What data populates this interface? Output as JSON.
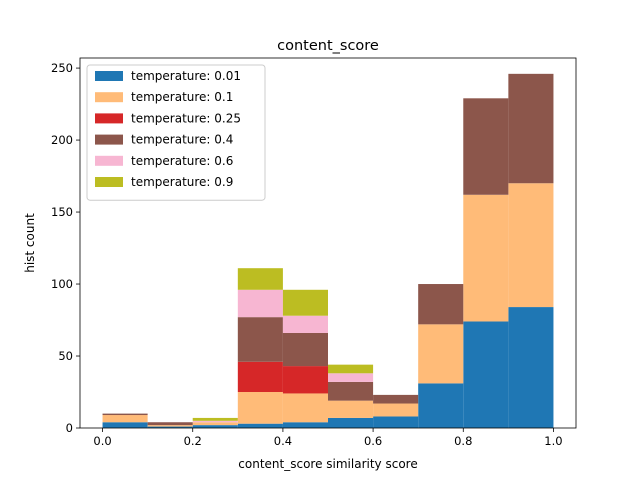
{
  "chart_data": {
    "type": "bar",
    "stacked": true,
    "title": "content_score",
    "xlabel": "content_score similarity score",
    "ylabel": "hist count",
    "xlim": [
      -0.05,
      1.05
    ],
    "ylim": [
      0,
      257
    ],
    "xticks": [
      0.0,
      0.2,
      0.4,
      0.6,
      0.8,
      1.0
    ],
    "xtick_labels": [
      "0.0",
      "0.2",
      "0.4",
      "0.6",
      "0.8",
      "1.0"
    ],
    "yticks": [
      0,
      50,
      100,
      150,
      200,
      250
    ],
    "ytick_labels": [
      "0",
      "50",
      "100",
      "150",
      "200",
      "250"
    ],
    "bin_edges": [
      0.0,
      0.1,
      0.2,
      0.3,
      0.4,
      0.5,
      0.6,
      0.7,
      0.8,
      0.9,
      1.0
    ],
    "legend": {
      "placement": "top-left"
    },
    "grid": false,
    "series": [
      {
        "name": "temperature: 0.01",
        "color": "#1f77b4",
        "values": [
          4,
          1,
          2,
          3,
          4,
          7,
          8,
          31,
          74,
          84
        ]
      },
      {
        "name": "temperature: 0.1",
        "color": "#ffbb78",
        "values": [
          5,
          1,
          2,
          22,
          20,
          12,
          9,
          41,
          88,
          86
        ]
      },
      {
        "name": "temperature: 0.25",
        "color": "#d62728",
        "values": [
          0,
          0,
          0,
          21,
          19,
          0,
          0,
          0,
          0,
          0
        ]
      },
      {
        "name": "temperature: 0.4",
        "color": "#8c564b",
        "values": [
          1,
          2,
          0,
          31,
          23,
          13,
          6,
          28,
          67,
          76
        ]
      },
      {
        "name": "temperature: 0.6",
        "color": "#f7b6d2",
        "values": [
          0,
          0,
          1,
          19,
          12,
          6,
          0,
          0,
          0,
          0
        ]
      },
      {
        "name": "temperature: 0.9",
        "color": "#bcbd22",
        "values": [
          0,
          0,
          2,
          15,
          18,
          6,
          0,
          0,
          0,
          0
        ]
      }
    ]
  }
}
